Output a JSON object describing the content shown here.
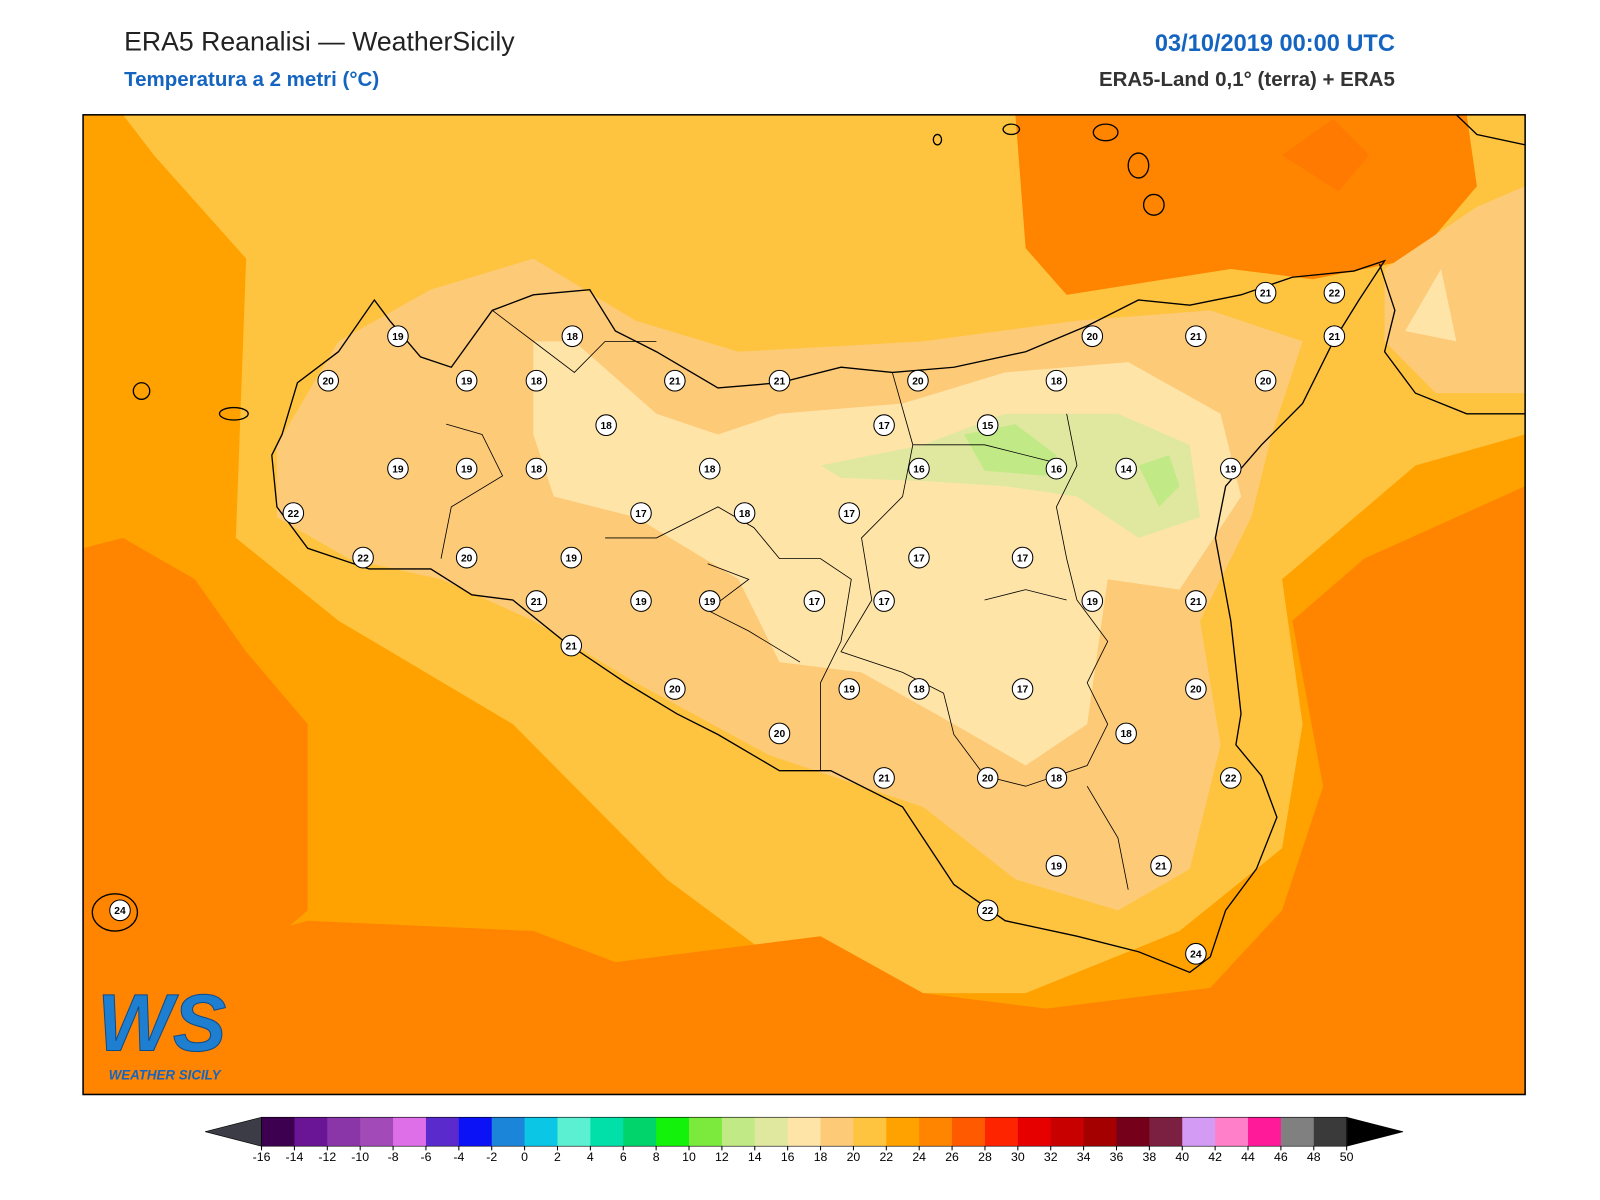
{
  "header": {
    "title": "ERA5 Reanalisi — WeatherSicily",
    "subtitle": "Temperatura a 2 metri (°C)",
    "date": "03/10/2019 00:00 UTC",
    "source": "ERA5-Land 0,1° (terra) + ERA5"
  },
  "stations": {
    "values": [
      19,
      18,
      20,
      19,
      18,
      21,
      21,
      20,
      18,
      20,
      21,
      21,
      22,
      21,
      20,
      18,
      17,
      15,
      19,
      19,
      18,
      18,
      16,
      16,
      14,
      19,
      22,
      17,
      18,
      17,
      22,
      20,
      19,
      17,
      17,
      21,
      19,
      19,
      17,
      17,
      19,
      21,
      21,
      20,
      19,
      18,
      17,
      20,
      20,
      18,
      21,
      20,
      18,
      22,
      19,
      21,
      22,
      24,
      24
    ]
  },
  "colorbar": {
    "ticks": [
      -16,
      -14,
      -12,
      -10,
      -8,
      -6,
      -4,
      -2,
      0,
      2,
      4,
      6,
      8,
      10,
      12,
      14,
      16,
      18,
      20,
      22,
      24,
      26,
      28,
      30,
      32,
      34,
      36,
      38,
      40,
      42,
      44,
      46,
      48,
      50
    ],
    "colors": [
      "#3d0050",
      "#6a1595",
      "#8a36a8",
      "#a24ab8",
      "#de6fe8",
      "#5a2acc",
      "#0b12f5",
      "#1b86d9",
      "#0cc6e6",
      "#5cf0d2",
      "#00e0a8",
      "#00d46a",
      "#13f20a",
      "#7bea3c",
      "#c1ea86",
      "#e0e8a0",
      "#ffe4a8",
      "#fdca78",
      "#ffc43f",
      "#ffa200",
      "#ff8500",
      "#ff5a00",
      "#ff2400",
      "#e60000",
      "#c80000",
      "#a50000",
      "#74001a",
      "#7b2040",
      "#d49bf5",
      "#ff80c8",
      "#ff1a9a",
      "#808080",
      "#3a3a3a"
    ],
    "under_color": "#3c3c46",
    "over_color": "#000000"
  },
  "logo": {
    "text": "WS",
    "caption": "WEATHER SICILY"
  }
}
